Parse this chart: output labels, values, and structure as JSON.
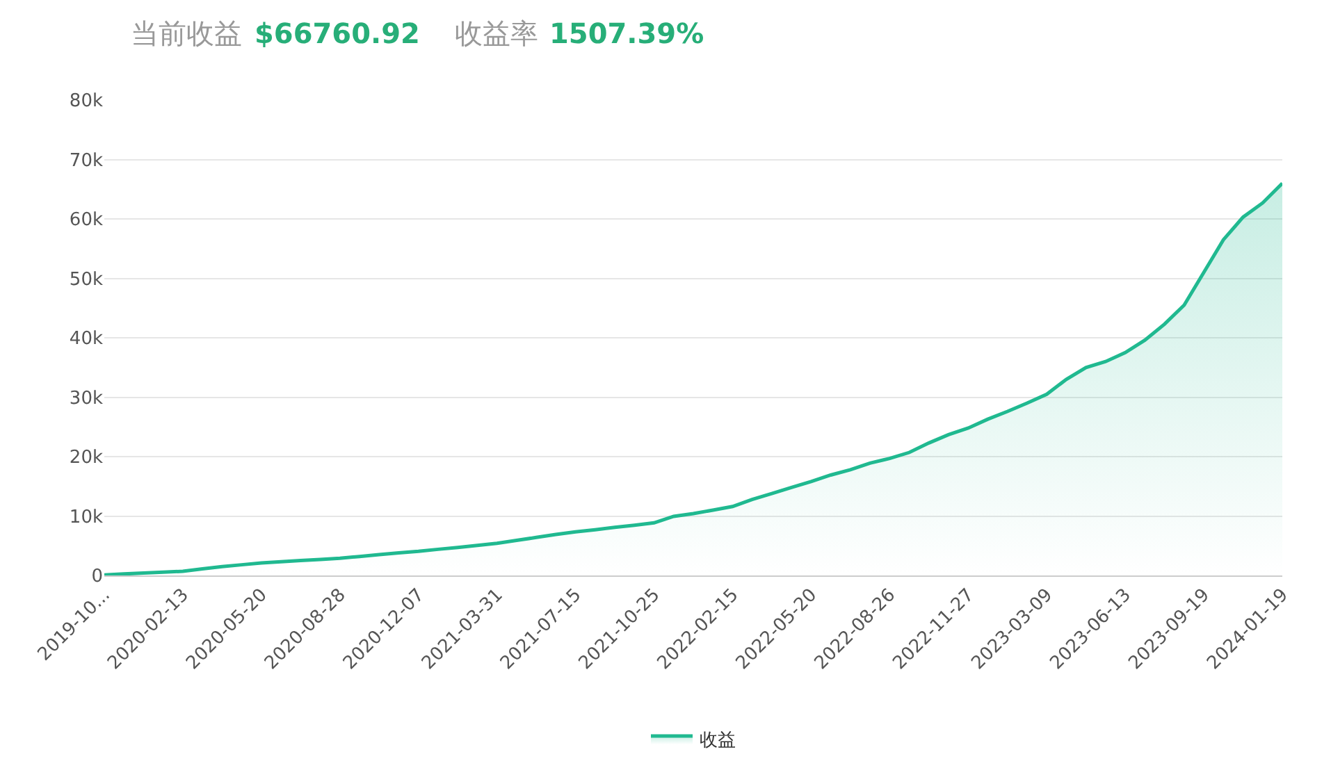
{
  "chart_data": {
    "type": "area",
    "annotations": [
      "当前收益",
      "$66760.92",
      "收益率",
      "1507.39%"
    ],
    "categories": [
      "2019-10...",
      null,
      null,
      null,
      "2020-02-13",
      null,
      null,
      null,
      "2020-05-20",
      null,
      null,
      null,
      "2020-08-28",
      null,
      null,
      null,
      "2020-12-07",
      null,
      null,
      null,
      "2021-03-31",
      null,
      null,
      null,
      "2021-07-15",
      null,
      null,
      null,
      "2021-10-25",
      null,
      null,
      null,
      "2022-02-15",
      null,
      null,
      null,
      "2022-05-20",
      null,
      null,
      null,
      "2022-08-26",
      null,
      null,
      null,
      "2022-11-27",
      null,
      null,
      null,
      "2023-03-09",
      null,
      null,
      null,
      "2023-06-13",
      null,
      null,
      null,
      "2023-09-19",
      null,
      null,
      null,
      "2024-01-19"
    ],
    "series": [
      {
        "name": "收益",
        "color": "#20b990",
        "values": [
          100,
          250,
          400,
          550,
          700,
          1100,
          1500,
          1800,
          2100,
          2300,
          2500,
          2700,
          2900,
          3200,
          3500,
          3800,
          4060,
          4400,
          4700,
          5050,
          5400,
          5900,
          6400,
          6900,
          7350,
          7700,
          8100,
          8450,
          8850,
          9950,
          10400,
          11000,
          11600,
          12800,
          13800,
          14800,
          15800,
          16900,
          17800,
          18900,
          19700,
          20700,
          22300,
          23700,
          24800,
          26300,
          27600,
          29000,
          30500,
          33000,
          35000,
          36000,
          37500,
          39600,
          42300,
          45500,
          51000,
          56500,
          60300,
          62700,
          66000
        ]
      }
    ],
    "ylim": [
      0,
      80000
    ],
    "yticks": [
      {
        "value": 0,
        "label": "0"
      },
      {
        "value": 10000,
        "label": "10k"
      },
      {
        "value": 20000,
        "label": "20k"
      },
      {
        "value": 30000,
        "label": "30k"
      },
      {
        "value": 40000,
        "label": "40k"
      },
      {
        "value": 50000,
        "label": "50k"
      },
      {
        "value": 60000,
        "label": "60k"
      },
      {
        "value": 70000,
        "label": "70k"
      },
      {
        "value": 80000,
        "label": "80k"
      }
    ],
    "grid": "y",
    "legend": "bottom",
    "marker": "none",
    "line_style": "solid"
  }
}
